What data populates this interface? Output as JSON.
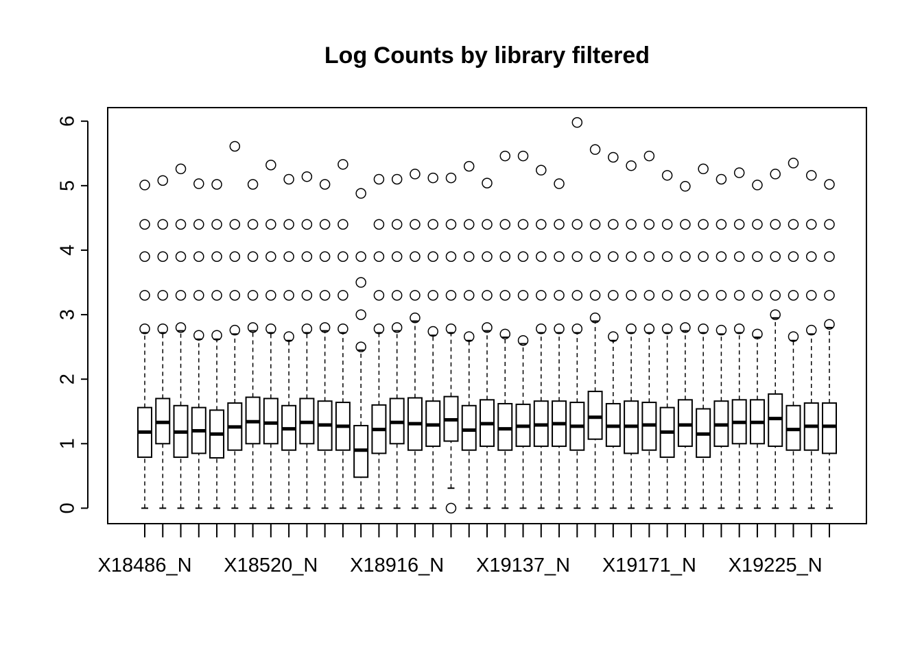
{
  "chart_data": {
    "type": "box",
    "title": "Log Counts by library filtered",
    "categories": [
      "X18486_N",
      null,
      null,
      null,
      null,
      null,
      null,
      "X18520_N",
      null,
      null,
      null,
      null,
      null,
      null,
      "X18916_N",
      null,
      null,
      null,
      null,
      null,
      null,
      "X19137_N",
      null,
      null,
      null,
      null,
      null,
      null,
      "X19171_N",
      null,
      null,
      null,
      null,
      null,
      null,
      "X19225_N",
      null,
      null,
      null
    ],
    "min": [
      0,
      0,
      0,
      0,
      0,
      0,
      0,
      0,
      0,
      0,
      0,
      0,
      0,
      0,
      0,
      0,
      0,
      0.31,
      0,
      0,
      0,
      0,
      0,
      0,
      0,
      0,
      0,
      0,
      0,
      0,
      0,
      0,
      0,
      0,
      0,
      0,
      0,
      0,
      0
    ],
    "q1": [
      0.79,
      1.0,
      0.79,
      0.85,
      0.78,
      0.9,
      1.0,
      1.0,
      0.9,
      1.0,
      0.9,
      0.9,
      0.48,
      0.85,
      1.0,
      0.9,
      0.96,
      1.04,
      0.9,
      0.96,
      0.9,
      0.96,
      0.96,
      0.96,
      0.9,
      1.07,
      0.96,
      0.85,
      0.9,
      0.79,
      0.96,
      0.79,
      0.96,
      1.0,
      1.0,
      0.96,
      0.9,
      0.9,
      0.85
    ],
    "median": [
      1.18,
      1.33,
      1.18,
      1.2,
      1.15,
      1.26,
      1.34,
      1.32,
      1.23,
      1.33,
      1.29,
      1.27,
      0.9,
      1.22,
      1.33,
      1.31,
      1.29,
      1.37,
      1.21,
      1.31,
      1.23,
      1.27,
      1.29,
      1.31,
      1.27,
      1.41,
      1.27,
      1.27,
      1.29,
      1.18,
      1.29,
      1.15,
      1.29,
      1.33,
      1.33,
      1.39,
      1.22,
      1.27,
      1.27
    ],
    "q3": [
      1.56,
      1.7,
      1.59,
      1.56,
      1.52,
      1.63,
      1.72,
      1.7,
      1.59,
      1.7,
      1.66,
      1.64,
      1.28,
      1.6,
      1.7,
      1.71,
      1.66,
      1.73,
      1.59,
      1.68,
      1.62,
      1.61,
      1.66,
      1.66,
      1.64,
      1.81,
      1.62,
      1.66,
      1.64,
      1.56,
      1.68,
      1.54,
      1.66,
      1.68,
      1.68,
      1.77,
      1.59,
      1.63,
      1.63
    ],
    "max": [
      2.72,
      2.72,
      2.75,
      2.62,
      2.62,
      2.7,
      2.75,
      2.72,
      2.6,
      2.72,
      2.75,
      2.72,
      2.45,
      2.72,
      2.75,
      2.9,
      2.68,
      2.72,
      2.6,
      2.75,
      2.65,
      2.55,
      2.72,
      2.72,
      2.72,
      2.9,
      2.6,
      2.72,
      2.72,
      2.72,
      2.75,
      2.72,
      2.7,
      2.72,
      2.65,
      2.95,
      2.6,
      2.7,
      2.8
    ],
    "outliers": [
      [
        2.78,
        3.3,
        3.9,
        4.4,
        5.01
      ],
      [
        2.78,
        3.3,
        3.9,
        4.4,
        5.08
      ],
      [
        2.8,
        3.3,
        3.9,
        4.4,
        5.26
      ],
      [
        2.68,
        3.3,
        3.9,
        4.4,
        5.03
      ],
      [
        2.68,
        3.3,
        3.9,
        4.4,
        5.02
      ],
      [
        2.76,
        3.3,
        3.9,
        4.4,
        5.61
      ],
      [
        2.8,
        3.3,
        3.9,
        4.4,
        5.02
      ],
      [
        2.78,
        3.3,
        3.9,
        4.4,
        5.32
      ],
      [
        2.66,
        3.3,
        3.9,
        4.4,
        5.1
      ],
      [
        2.78,
        3.3,
        3.9,
        4.4,
        5.14
      ],
      [
        2.8,
        3.3,
        3.9,
        4.4,
        5.02
      ],
      [
        2.78,
        3.3,
        3.9,
        4.4,
        5.33
      ],
      [
        2.5,
        3.0,
        3.5,
        3.9,
        4.88
      ],
      [
        2.78,
        3.3,
        3.9,
        4.4,
        5.1
      ],
      [
        2.8,
        3.3,
        3.9,
        4.4,
        5.1
      ],
      [
        2.95,
        3.3,
        3.9,
        4.4,
        5.18
      ],
      [
        2.74,
        3.3,
        3.9,
        4.4,
        5.12
      ],
      [
        0,
        2.78,
        3.3,
        3.9,
        4.4,
        5.12
      ],
      [
        2.66,
        3.3,
        3.9,
        4.4,
        5.3
      ],
      [
        2.8,
        3.3,
        3.9,
        4.4,
        5.04
      ],
      [
        2.7,
        3.3,
        3.9,
        4.4,
        5.46
      ],
      [
        2.6,
        3.3,
        3.9,
        4.4,
        5.46
      ],
      [
        2.78,
        3.3,
        3.9,
        4.4,
        5.24
      ],
      [
        2.78,
        3.3,
        3.9,
        4.4,
        5.03
      ],
      [
        2.78,
        3.3,
        3.9,
        4.4,
        5.98
      ],
      [
        2.95,
        3.3,
        3.9,
        4.4,
        5.56
      ],
      [
        2.66,
        3.3,
        3.9,
        4.4,
        5.44
      ],
      [
        2.78,
        3.3,
        3.9,
        4.4,
        5.31
      ],
      [
        2.78,
        3.3,
        3.9,
        4.4,
        5.46
      ],
      [
        2.78,
        3.3,
        3.9,
        4.4,
        5.16
      ],
      [
        2.8,
        3.3,
        3.9,
        4.4,
        4.99
      ],
      [
        2.78,
        3.3,
        3.9,
        4.4,
        5.26
      ],
      [
        2.76,
        3.3,
        3.9,
        4.4,
        5.1
      ],
      [
        2.78,
        3.3,
        3.9,
        4.4,
        5.2
      ],
      [
        2.7,
        3.3,
        3.9,
        4.4,
        5.01
      ],
      [
        3.0,
        3.3,
        3.9,
        4.4,
        5.18
      ],
      [
        2.66,
        3.3,
        3.9,
        4.4,
        5.35
      ],
      [
        2.76,
        3.3,
        3.9,
        4.4,
        5.16
      ],
      [
        2.85,
        3.3,
        3.9,
        4.4,
        5.02
      ]
    ],
    "ylim": [
      -0.24,
      6.21
    ],
    "yticks": [
      0,
      1,
      2,
      3,
      4,
      5,
      6
    ],
    "color": "#000000"
  }
}
